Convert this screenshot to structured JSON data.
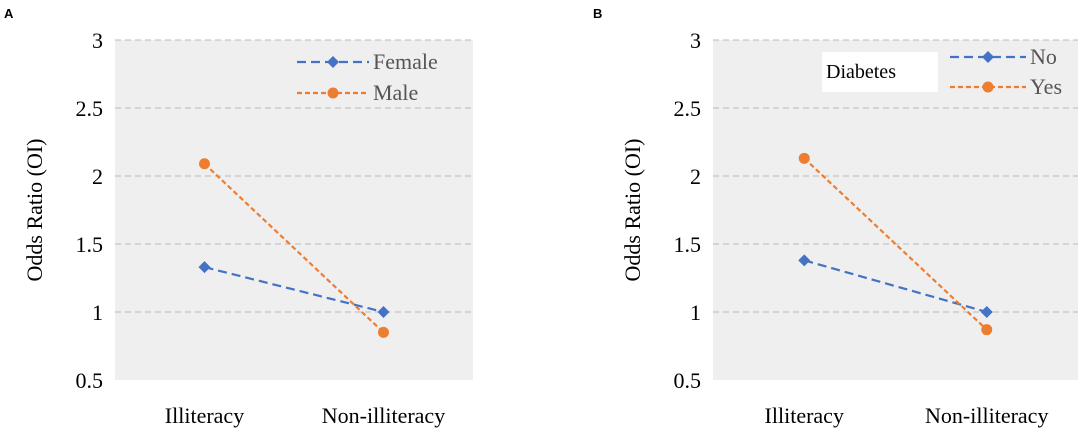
{
  "colors": {
    "plot_bg": "#efefef",
    "grid": "#b8b8b8",
    "blue": "#4472c4",
    "orange": "#ed7d31"
  },
  "chart_data": [
    {
      "type": "line",
      "panel_label": "A",
      "categories": [
        "Illiteracy",
        "Non-illiteracy"
      ],
      "ylabel": "Odds Ratio (OI)",
      "ylim": [
        0.5,
        3
      ],
      "yticks": [
        "0.5",
        "1",
        "1.5",
        "2",
        "2.5",
        "3"
      ],
      "legend_title": "",
      "legend_position": "top-right",
      "series": [
        {
          "name": "Female",
          "marker": "diamond",
          "color": "#4472c4",
          "values": [
            1.33,
            1.0
          ]
        },
        {
          "name": "Male",
          "marker": "circle",
          "color": "#ed7d31",
          "values": [
            2.09,
            0.85
          ]
        }
      ]
    },
    {
      "type": "line",
      "panel_label": "B",
      "categories": [
        "Illiteracy",
        "Non-illiteracy"
      ],
      "ylabel": "Odds Ratio (OI)",
      "ylim": [
        0.5,
        3
      ],
      "yticks": [
        "0.5",
        "1",
        "1.5",
        "2",
        "2.5",
        "3"
      ],
      "legend_title": "Diabetes",
      "legend_position": "top-right",
      "series": [
        {
          "name": "No",
          "marker": "diamond",
          "color": "#4472c4",
          "values": [
            1.38,
            1.0
          ]
        },
        {
          "name": "Yes",
          "marker": "circle",
          "color": "#ed7d31",
          "values": [
            2.13,
            0.87
          ]
        }
      ]
    }
  ]
}
